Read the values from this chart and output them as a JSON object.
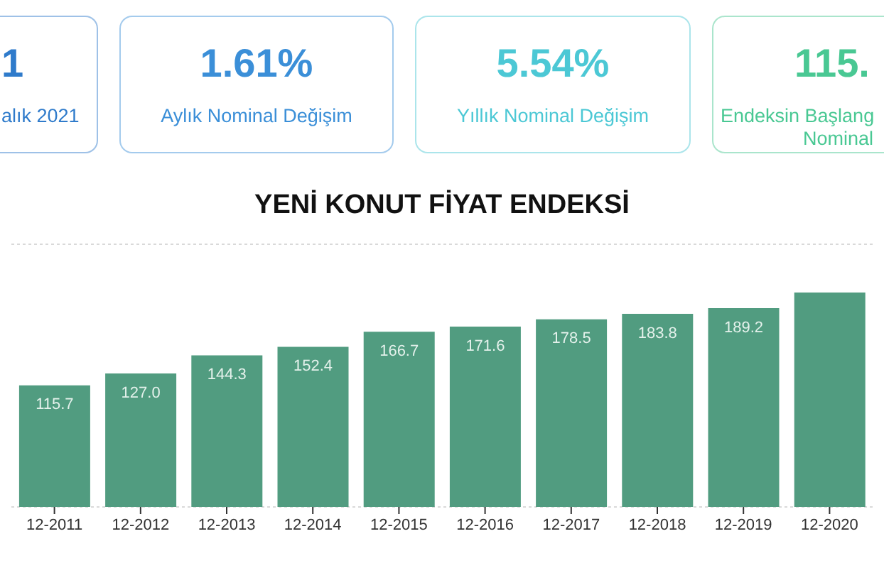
{
  "chart_data": [
    {
      "type": "other",
      "annotations": [
        "1",
        "alık 2021",
        "1.61%",
        "Aylık Nominal Değişim",
        "5.54%",
        "Yıllık Nominal Değişim",
        "115.",
        "Endeksin Başlang",
        "Nominal"
      ],
      "colors": [
        "#2f7bcb",
        "#3b8fd8",
        "#4cc8d5",
        "#49c893"
      ]
    },
    {
      "type": "bar",
      "title": "YENİ KONUT FİYAT ENDEKSİ",
      "categories": [
        "12-2011",
        "12-2012",
        "12-2013",
        "12-2014",
        "12-2015",
        "12-2016",
        "12-2017",
        "12-2018",
        "12-2019",
        "12-2020"
      ],
      "values": [
        115.7,
        127.0,
        144.3,
        152.4,
        166.7,
        171.6,
        178.5,
        183.8,
        189.2,
        204
      ],
      "value_labels": [
        "115.7",
        "127.0",
        "144.3",
        "152.4",
        "166.7",
        "171.6",
        "178.5",
        "183.8",
        "189.2",
        null
      ],
      "color": "#519c80",
      "ylim": [
        0,
        250
      ],
      "grid": "y",
      "tick_labels": "x"
    }
  ]
}
